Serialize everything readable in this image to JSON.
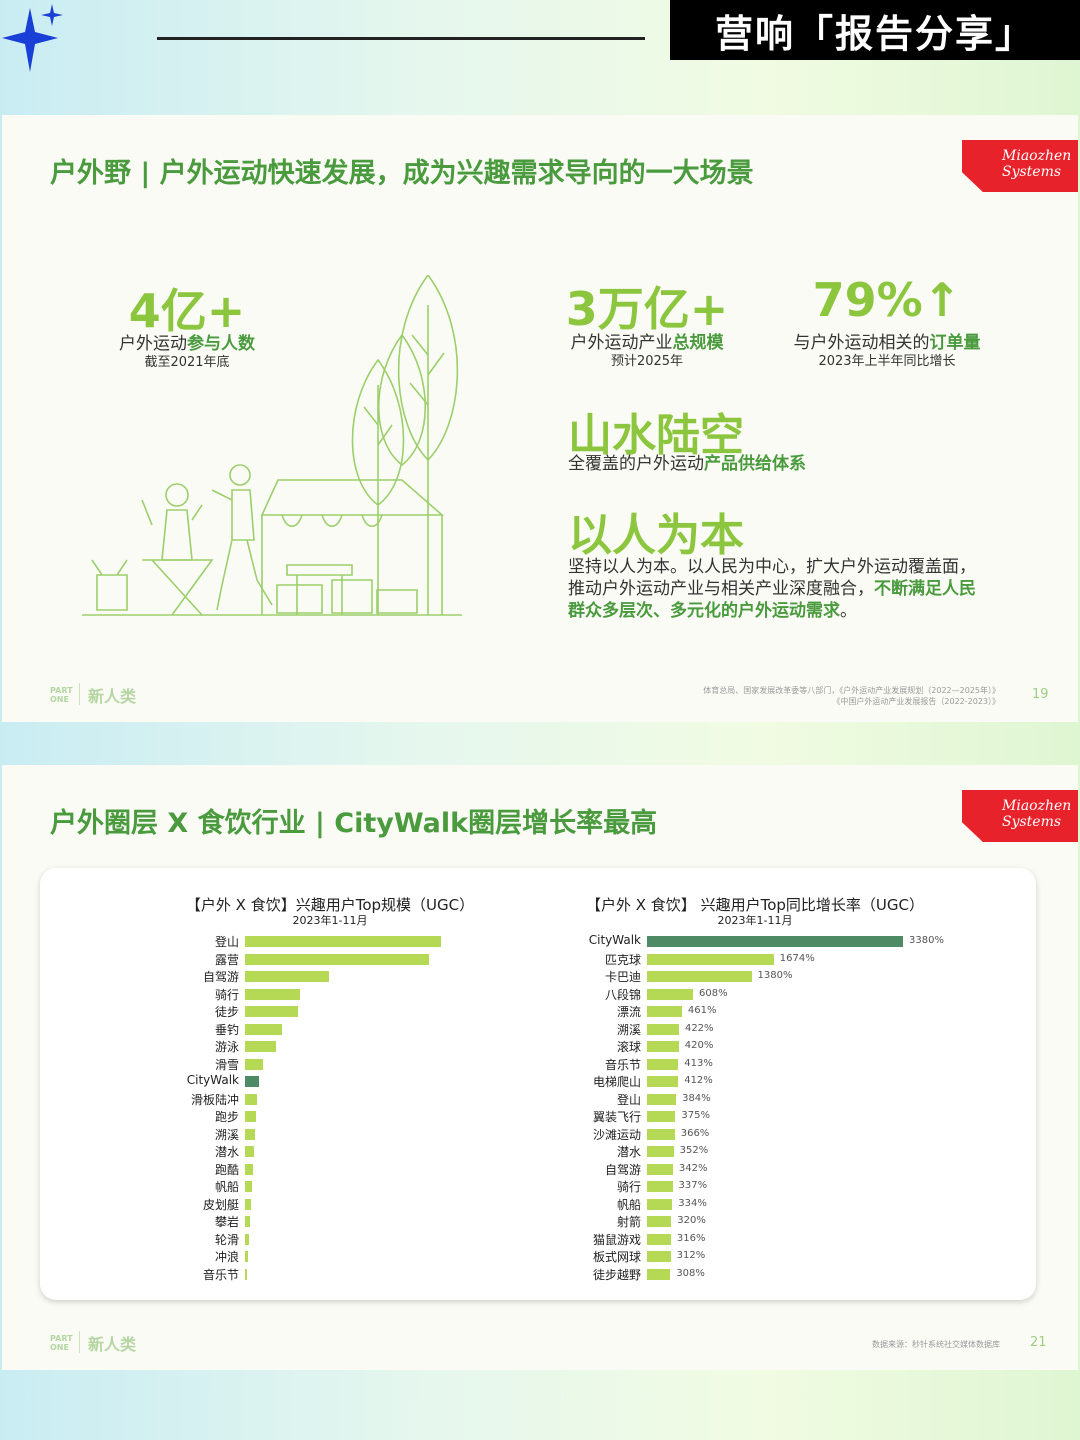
{
  "header": {
    "badge": "营响「报告分享」"
  },
  "slide1": {
    "title": "户外野 | 户外运动快速发展，成为兴趣需求导向的一大场景",
    "logo": [
      "Miaozhen",
      "Systems"
    ],
    "stats": [
      {
        "value": "4亿+",
        "label_plain": "户外运动",
        "label_bold": "参与人数",
        "sub": "截至2021年底"
      },
      {
        "value": "3万亿+",
        "label_plain": "户外运动产业",
        "label_bold": "总规模",
        "sub": "预计2025年"
      },
      {
        "value": "79%↑",
        "label_plain": "与户外运动相关的",
        "label_bold": "订单量",
        "sub": "2023年上半年同比增长"
      }
    ],
    "section1": {
      "heading": "山水陆空",
      "text_plain": "全覆盖的户外运动",
      "text_bold": "产品供给体系"
    },
    "section2": {
      "heading": "以人为本",
      "text_plain": "坚持以人为本。以人民为中心，扩大户外运动覆盖面，推动户外运动产业与相关产业深度融合，",
      "text_bold": "不断满足人民群众多层次、多元化的户外运动需求",
      "text_end": "。"
    },
    "footer": {
      "part": [
        "PART",
        "ONE"
      ],
      "brand": "新人类",
      "source_line1": "体育总局、国家发展改革委等八部门，《户外运动产业发展规划（2022—2025年）》",
      "source_line2": "《中国户外运动产业发展报告（2022-2023）》",
      "page": "19"
    }
  },
  "slide2": {
    "title": "户外圈层 X 食饮行业 | CityWalk圈层增长率最高",
    "logo": [
      "Miaozhen",
      "Systems"
    ],
    "footer": {
      "part": [
        "PART",
        "ONE"
      ],
      "brand": "新人类",
      "source": "数据来源：秒针系统社交媒体数据库",
      "page": "21"
    }
  },
  "colors": {
    "accent_green": "#8cc63f",
    "dark_green": "#4a9a3e",
    "highlight_bar": "#4e8a63",
    "bar": "#b5d954",
    "logo_red": "#e8222a"
  },
  "chart_data": [
    {
      "type": "bar",
      "orientation": "horizontal",
      "title": "【户外 X 食饮】兴趣用户Top规模（UGC）",
      "subtitle": "2023年1-11月",
      "categories": [
        "登山",
        "露营",
        "自驾游",
        "骑行",
        "徒步",
        "垂钓",
        "游泳",
        "滑雪",
        "CityWalk",
        "滑板陆冲",
        "跑步",
        "溯溪",
        "潜水",
        "跑酷",
        "帆船",
        "皮划艇",
        "攀岩",
        "轮滑",
        "冲浪",
        "音乐节"
      ],
      "values": [
        100,
        94,
        43,
        28,
        27,
        19,
        16,
        9,
        7,
        6,
        5.5,
        5,
        4.5,
        4,
        3.5,
        3,
        2.5,
        2,
        1.5,
        1.2
      ],
      "highlight": "CityWalk",
      "value_labels_shown": false
    },
    {
      "type": "bar",
      "orientation": "horizontal",
      "title": "【户外 X 食饮】 兴趣用户Top同比增长率（UGC）",
      "subtitle": "2023年1-11月",
      "categories": [
        "CityWalk",
        "匹克球",
        "卡巴迪",
        "八段锦",
        "漂流",
        "溯溪",
        "滚球",
        "音乐节",
        "电梯爬山",
        "登山",
        "翼装飞行",
        "沙滩运动",
        "潜水",
        "自驾游",
        "骑行",
        "帆船",
        "射箭",
        "猫鼠游戏",
        "板式网球",
        "徒步越野"
      ],
      "values": [
        3380,
        1674,
        1380,
        608,
        461,
        422,
        420,
        413,
        412,
        384,
        375,
        366,
        352,
        342,
        337,
        334,
        320,
        316,
        312,
        308
      ],
      "value_labels": [
        "3380%",
        "1674%",
        "1380%",
        "608%",
        "461%",
        "422%",
        "420%",
        "413%",
        "412%",
        "384%",
        "375%",
        "366%",
        "352%",
        "342%",
        "337%",
        "334%",
        "320%",
        "316%",
        "312%",
        "308%"
      ],
      "unit": "%",
      "highlight": "CityWalk"
    }
  ]
}
